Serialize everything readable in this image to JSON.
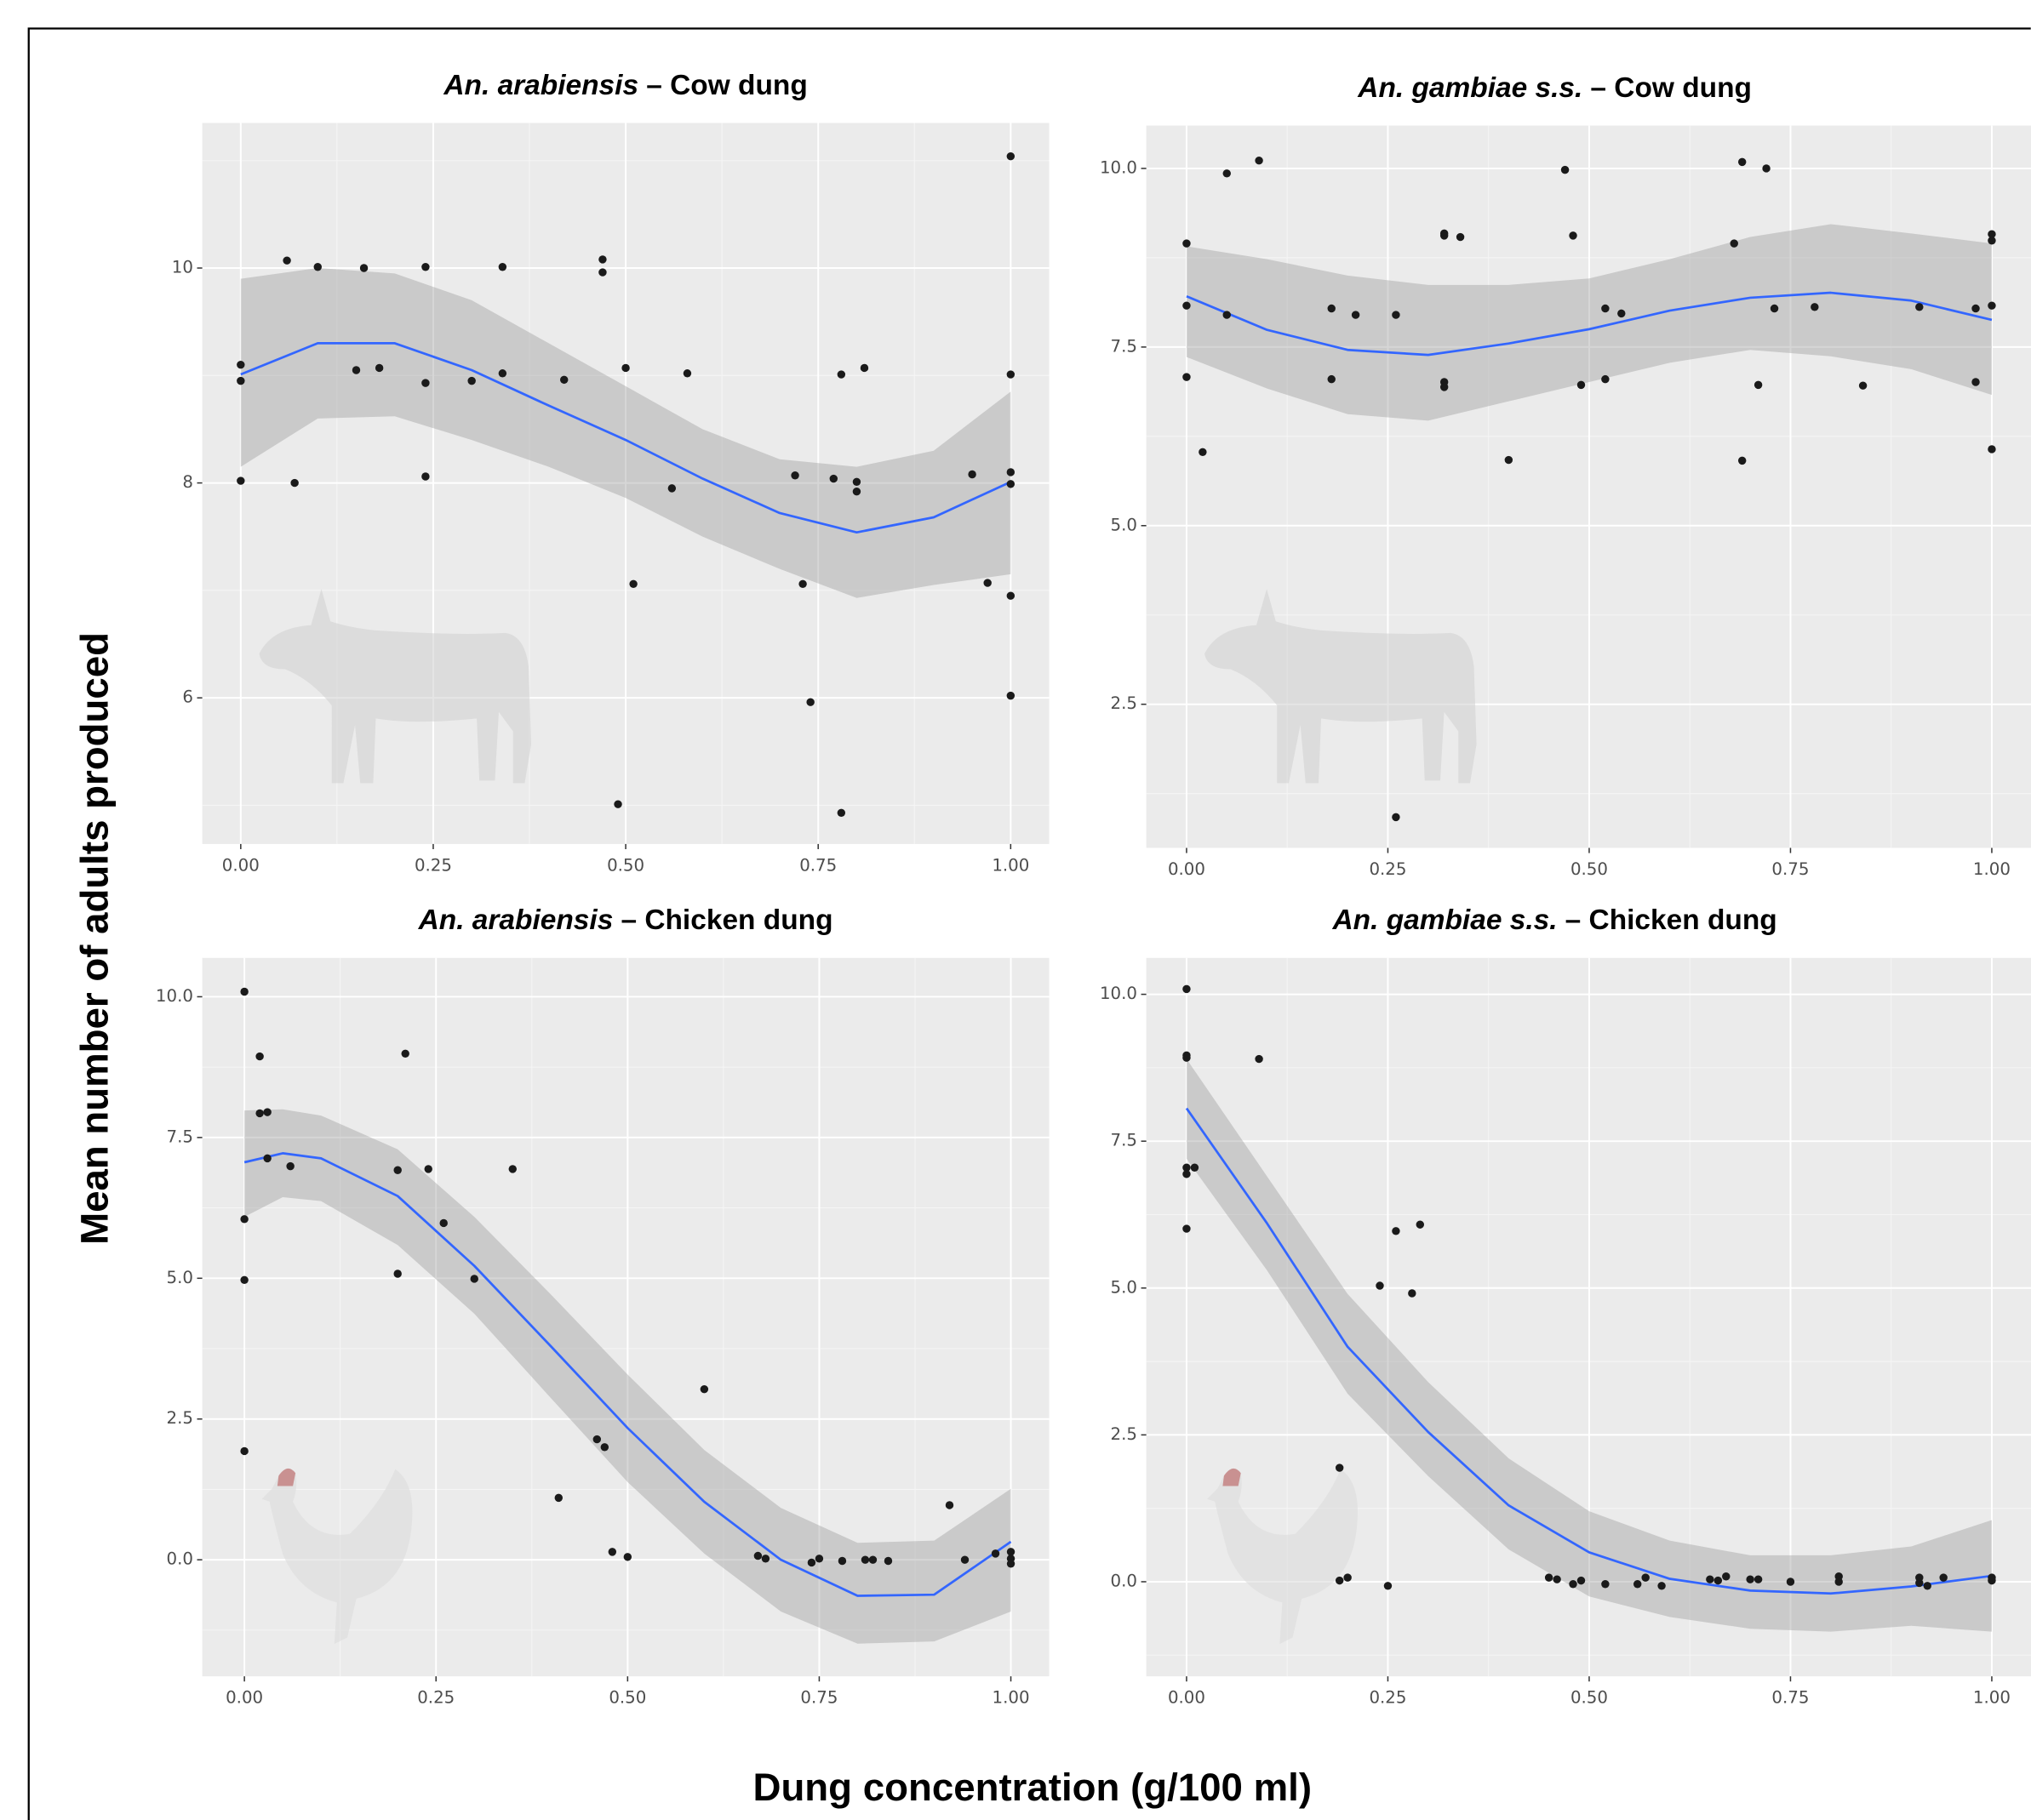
{
  "xlabel": "Dung concentration (g/100 ml)",
  "ylabel": "Mean number of adults produced",
  "chart_data": [
    {
      "type": "scatter",
      "title_species": "An. arabiensis",
      "title_rest": "– Cow dung",
      "point_color": "#1a1a1a",
      "grid": true,
      "xlim": [
        -0.05,
        1.05
      ],
      "ylim": [
        4.64,
        11.35
      ],
      "xticks": [
        {
          "value": 0,
          "label": "0.00"
        },
        {
          "value": 0.25,
          "label": "0.25"
        },
        {
          "value": 0.5,
          "label": "0.50"
        },
        {
          "value": 0.75,
          "label": "0.75"
        },
        {
          "value": 1,
          "label": "1.00"
        }
      ],
      "yticks": [
        6,
        8,
        10
      ],
      "points": {
        "x": [
          0,
          0,
          0,
          0.06,
          0.1,
          0.07,
          0.16,
          0.15,
          0.18,
          0.24,
          0.24,
          0.24,
          0.3,
          0.34,
          0.34,
          0.42,
          0.47,
          0.47,
          0.5,
          0.51,
          0.49,
          0.58,
          0.56,
          0.72,
          0.73,
          0.74,
          0.77,
          0.78,
          0.81,
          0.8,
          0.8,
          0.78,
          0.95,
          0.97,
          1,
          1,
          1,
          1,
          1,
          1
        ],
        "y": [
          9.1,
          8.95,
          8.02,
          10.07,
          10.01,
          8.0,
          10.0,
          9.05,
          9.07,
          10.01,
          8.93,
          8.06,
          8.95,
          10.01,
          9.02,
          8.96,
          10.08,
          9.96,
          9.07,
          7.06,
          5.01,
          9.02,
          7.95,
          8.07,
          7.06,
          5.96,
          8.04,
          9.01,
          9.07,
          8.01,
          7.92,
          4.93,
          8.08,
          7.07,
          11.04,
          9.01,
          8.1,
          7.99,
          6.95,
          6.02
        ]
      },
      "smooth": {
        "color": "#3366ff",
        "fill": "#999999",
        "alpha": 0.4,
        "x": [
          0,
          0.1,
          0.2,
          0.3,
          0.4,
          0.5,
          0.6,
          0.7,
          0.8,
          0.9,
          1.0
        ],
        "fit": [
          9.01,
          9.3,
          9.3,
          9.05,
          8.72,
          8.4,
          8.04,
          7.72,
          7.54,
          7.68,
          8.01
        ],
        "upper": [
          9.9,
          10.0,
          9.95,
          9.7,
          9.3,
          8.9,
          8.5,
          8.22,
          8.15,
          8.3,
          8.85
        ],
        "lower": [
          8.15,
          8.6,
          8.62,
          8.4,
          8.15,
          7.86,
          7.5,
          7.2,
          6.93,
          7.05,
          7.15
        ]
      }
    },
    {
      "type": "scatter",
      "title_species": "An. gambiae s.s.",
      "title_rest": "– Cow dung",
      "point_color": "#1a1a1a",
      "grid": true,
      "xlim": [
        -0.05,
        1.05
      ],
      "ylim": [
        0.49,
        10.6
      ],
      "xticks": [
        {
          "value": 0,
          "label": "0.00"
        },
        {
          "value": 0.25,
          "label": "0.25"
        },
        {
          "value": 0.5,
          "label": "0.50"
        },
        {
          "value": 0.75,
          "label": "0.75"
        },
        {
          "value": 1,
          "label": "1.00"
        }
      ],
      "yticks": [
        2.5,
        {
          "value": 5,
          "label": "5.0"
        },
        7.5,
        {
          "value": 10,
          "label": "10.0"
        }
      ],
      "points": {
        "x": [
          0,
          0,
          0,
          0.02,
          0.05,
          0.09,
          0.05,
          0.18,
          0.18,
          0.21,
          0.26,
          0.26,
          0.32,
          0.32,
          0.32,
          0.32,
          0.34,
          0.4,
          0.47,
          0.48,
          0.49,
          0.52,
          0.52,
          0.54,
          0.68,
          0.69,
          0.69,
          0.71,
          0.72,
          0.73,
          0.78,
          0.84,
          0.91,
          0.98,
          0.98,
          1,
          1,
          1,
          1
        ],
        "y": [
          8.95,
          8.08,
          7.08,
          6.03,
          9.93,
          10.11,
          7.95,
          8.04,
          7.05,
          7.95,
          7.95,
          0.92,
          7.01,
          6.94,
          9.06,
          9.09,
          9.04,
          5.92,
          9.98,
          9.06,
          6.97,
          8.04,
          7.05,
          7.97,
          8.95,
          10.09,
          5.91,
          6.97,
          10.0,
          8.04,
          8.06,
          6.96,
          8.06,
          7.01,
          8.04,
          9.08,
          8.99,
          8.08,
          6.07
        ]
      },
      "smooth": {
        "color": "#3366ff",
        "fill": "#999999",
        "alpha": 0.4,
        "x": [
          0,
          0.1,
          0.2,
          0.3,
          0.4,
          0.5,
          0.6,
          0.7,
          0.8,
          0.9,
          1.0
        ],
        "fit": [
          8.21,
          7.74,
          7.46,
          7.39,
          7.55,
          7.75,
          8.01,
          8.19,
          8.26,
          8.15,
          7.88
        ],
        "upper": [
          8.91,
          8.73,
          8.5,
          8.37,
          8.37,
          8.46,
          8.73,
          9.04,
          9.22,
          9.09,
          8.95
        ],
        "lower": [
          7.36,
          6.92,
          6.56,
          6.47,
          6.74,
          7.01,
          7.28,
          7.46,
          7.37,
          7.19,
          6.83
        ]
      }
    },
    {
      "type": "scatter",
      "title_species": "An. arabiensis",
      "title_rest": "– Chicken dung",
      "point_color": "#1a1a1a",
      "grid": true,
      "xlim": [
        -0.055,
        1.05
      ],
      "ylim": [
        -2.07,
        10.69
      ],
      "xticks": [
        {
          "value": 0,
          "label": "0.00"
        },
        {
          "value": 0.25,
          "label": "0.25"
        },
        {
          "value": 0.5,
          "label": "0.50"
        },
        {
          "value": 0.75,
          "label": "0.75"
        },
        {
          "value": 1,
          "label": "1.00"
        }
      ],
      "yticks": [
        {
          "value": 0,
          "label": "0.0"
        },
        2.5,
        {
          "value": 5,
          "label": "5.0"
        },
        7.5,
        {
          "value": 10,
          "label": "10.0"
        }
      ],
      "points": {
        "x": [
          0,
          0.02,
          0.02,
          0.03,
          0.03,
          0,
          0,
          0,
          0.06,
          0.21,
          0.2,
          0.24,
          0.26,
          0.2,
          0.3,
          0.35,
          0.41,
          0.46,
          0.47,
          0.48,
          0.5,
          0.6,
          0.67,
          0.68,
          0.74,
          0.75,
          0.78,
          0.81,
          0.82,
          0.84,
          0.92,
          0.94,
          0.98,
          1,
          1,
          1
        ],
        "y": [
          10.09,
          8.94,
          7.93,
          7.95,
          7.13,
          6.05,
          4.97,
          1.93,
          6.99,
          8.99,
          6.92,
          6.94,
          5.98,
          5.08,
          4.99,
          6.94,
          1.1,
          2.14,
          2.0,
          0.14,
          0.05,
          3.03,
          0.07,
          0.02,
          -0.05,
          0.02,
          -0.02,
          0.0,
          0.0,
          -0.02,
          0.97,
          0.0,
          0.11,
          0.14,
          0.02,
          -0.07
        ]
      },
      "smooth": {
        "color": "#3366ff",
        "fill": "#999999",
        "alpha": 0.4,
        "x": [
          0,
          0.05,
          0.1,
          0.2,
          0.3,
          0.4,
          0.5,
          0.6,
          0.7,
          0.8,
          0.9,
          1.0
        ],
        "fit": [
          7.06,
          7.22,
          7.13,
          6.46,
          5.22,
          3.79,
          2.34,
          1.03,
          0.0,
          -0.64,
          -0.62,
          0.32
        ],
        "upper": [
          7.98,
          8.0,
          7.89,
          7.29,
          6.09,
          4.71,
          3.29,
          1.95,
          0.92,
          0.3,
          0.34,
          1.26
        ],
        "lower": [
          6.09,
          6.44,
          6.37,
          5.59,
          4.37,
          2.87,
          1.38,
          0.11,
          -0.92,
          -1.49,
          -1.45,
          -0.92
        ]
      }
    },
    {
      "type": "scatter",
      "title_species": "An. gambiae s.s.",
      "title_rest": "– Chicken dung",
      "point_color": "#1a1a1a",
      "grid": true,
      "xlim": [
        -0.05,
        1.05
      ],
      "ylim": [
        -1.61,
        10.62
      ],
      "xticks": [
        {
          "value": 0,
          "label": "0.00"
        },
        {
          "value": 0.25,
          "label": "0.25"
        },
        {
          "value": 0.5,
          "label": "0.50"
        },
        {
          "value": 0.75,
          "label": "0.75"
        },
        {
          "value": 1,
          "label": "1.00"
        }
      ],
      "yticks": [
        {
          "value": 0,
          "label": "0.0"
        },
        2.5,
        {
          "value": 5,
          "label": "5.0"
        },
        7.5,
        {
          "value": 10,
          "label": "10.0"
        }
      ],
      "points": {
        "x": [
          0,
          0,
          0,
          0,
          0,
          0.01,
          0,
          0.09,
          0.19,
          0.19,
          0.2,
          0.24,
          0.26,
          0.29,
          0.28,
          0.25,
          0.45,
          0.46,
          0.48,
          0.49,
          0.52,
          0.56,
          0.57,
          0.59,
          0.65,
          0.66,
          0.67,
          0.7,
          0.71,
          0.75,
          0.81,
          0.81,
          0.91,
          0.91,
          0.92,
          0.94,
          1,
          1
        ],
        "y": [
          10.09,
          8.96,
          8.92,
          7.05,
          6.94,
          7.05,
          6.01,
          8.9,
          1.94,
          0.02,
          0.07,
          5.04,
          5.97,
          6.08,
          4.91,
          -0.07,
          0.07,
          0.04,
          -0.04,
          0.02,
          -0.04,
          -0.04,
          0.07,
          -0.07,
          0.04,
          0.02,
          0.09,
          0.04,
          0.04,
          0.0,
          0.0,
          0.09,
          0.07,
          -0.02,
          -0.07,
          0.07,
          0.07,
          0.02
        ]
      },
      "smooth": {
        "color": "#3366ff",
        "fill": "#999999",
        "alpha": 0.4,
        "x": [
          0,
          0.1,
          0.2,
          0.3,
          0.4,
          0.5,
          0.6,
          0.7,
          0.8,
          0.9,
          1.0
        ],
        "fit": [
          8.06,
          6.1,
          4.0,
          2.55,
          1.3,
          0.5,
          0.05,
          -0.15,
          -0.2,
          -0.08,
          0.1
        ],
        "upper": [
          8.9,
          6.9,
          4.9,
          3.4,
          2.1,
          1.2,
          0.7,
          0.45,
          0.45,
          0.6,
          1.05
        ],
        "lower": [
          7.2,
          5.3,
          3.2,
          1.8,
          0.55,
          -0.25,
          -0.6,
          -0.8,
          -0.85,
          -0.75,
          -0.85
        ]
      }
    }
  ]
}
